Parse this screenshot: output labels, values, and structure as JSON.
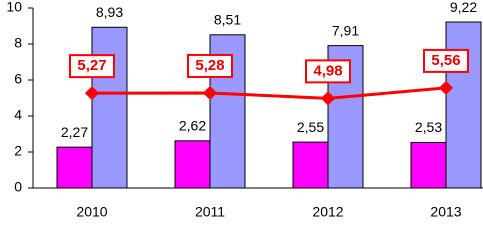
{
  "chart_data": {
    "type": "bar",
    "categories": [
      "2010",
      "2011",
      "2012",
      "2013"
    ],
    "series": [
      {
        "color": "#ff00ff",
        "values": [
          2.27,
          2.62,
          2.55,
          2.53
        ],
        "value_labels": [
          "2,27",
          "2,62",
          "2,55",
          "2,53"
        ]
      },
      {
        "color": "#9999ff",
        "values": [
          8.93,
          8.51,
          7.91,
          9.22
        ],
        "value_labels": [
          "8,93",
          "8,51",
          "7,91",
          "9,22"
        ]
      },
      {
        "type": "line",
        "color": "#ff0000",
        "values": [
          5.27,
          5.28,
          4.98,
          5.56
        ],
        "value_labels": [
          "5,27",
          "5,28",
          "4,98",
          "5,56"
        ]
      }
    ],
    "ylim": [
      0,
      10
    ],
    "yticks": [
      0,
      2,
      4,
      6,
      8,
      10
    ],
    "grid": false
  }
}
